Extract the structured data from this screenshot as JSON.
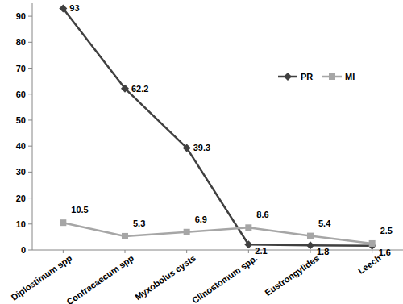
{
  "chart_data": {
    "type": "line",
    "categories": [
      "Diplostimum spp",
      "Contracaecum spp",
      "Myxobolus cysts",
      "Clinostomum spp.",
      "Eustrongylides",
      "Leech"
    ],
    "series": [
      {
        "name": "PR",
        "color": "#404040",
        "marker": "diamond",
        "values": [
          93,
          62.2,
          39.3,
          2.1,
          1.8,
          1.6
        ]
      },
      {
        "name": "MI",
        "color": "#a6a6a6",
        "marker": "square",
        "values": [
          10.5,
          5.3,
          6.9,
          8.6,
          5.4,
          2.5
        ]
      }
    ],
    "ylim": [
      0,
      95
    ],
    "yticks": [
      0,
      10,
      20,
      30,
      40,
      50,
      60,
      70,
      80,
      90
    ],
    "grid": false,
    "legend": "top-right",
    "data_labels": true
  }
}
